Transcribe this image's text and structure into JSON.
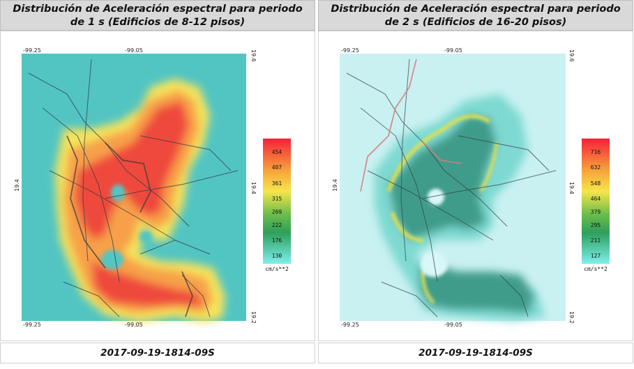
{
  "panels": [
    {
      "id": "left",
      "title_line1": "Distribución de Aceleración espectral para periodo",
      "title_line2": "de 1 s (Edificios de 8-12 pisos)",
      "footer": "2017-09-19-1814-09S",
      "coords": {
        "top_left": "-99.25",
        "top_mid": "-99.05",
        "top_right": "19.6",
        "left_mid": "19.4",
        "right_mid": "19.4",
        "bottom_left": "-99.25",
        "bottom_mid": "-99.05",
        "bottom_right": "19.2"
      },
      "legend": {
        "unit": "cm/s**2",
        "levels": [
          "454",
          "407",
          "361",
          "315",
          "269",
          "222",
          "176",
          "130"
        ],
        "colors": [
          "#f5203a",
          "#f45a2e",
          "#f7a13a",
          "#f6e54a",
          "#c7d94a",
          "#3fa64a",
          "#22b8a0",
          "#5ee6e6"
        ]
      },
      "scheme": {
        "background": "#52c5c3",
        "outer": "#f6e35a",
        "mid": "#f7a04a",
        "core": "#ef4a3c"
      }
    },
    {
      "id": "right",
      "title_line1": "Distribución de Aceleración espectral para periodo",
      "title_line2": "de 2 s (Edificios de 16-20 pisos)",
      "footer": "2017-09-19-1814-09S",
      "coords": {
        "top_left": "-99.25",
        "top_mid": "-99.05",
        "top_right": "19.6",
        "left_mid": "19.4",
        "right_mid": "19.4",
        "bottom_left": "-99.25",
        "bottom_mid": "-99.05",
        "bottom_right": "19.2"
      },
      "legend": {
        "unit": "cm/s**2",
        "levels": [
          "716",
          "632",
          "548",
          "464",
          "379",
          "295",
          "211",
          "127"
        ],
        "colors": [
          "#f5203a",
          "#f45a2e",
          "#f7a13a",
          "#f6e54a",
          "#c7d94a",
          "#3fa64a",
          "#22b8a0",
          "#5ee6e6"
        ]
      },
      "scheme": {
        "background": "#c9f1f1",
        "outer": "#7ed9d2",
        "mid": "#3f9c8a",
        "core": "#e6e04a"
      }
    }
  ]
}
